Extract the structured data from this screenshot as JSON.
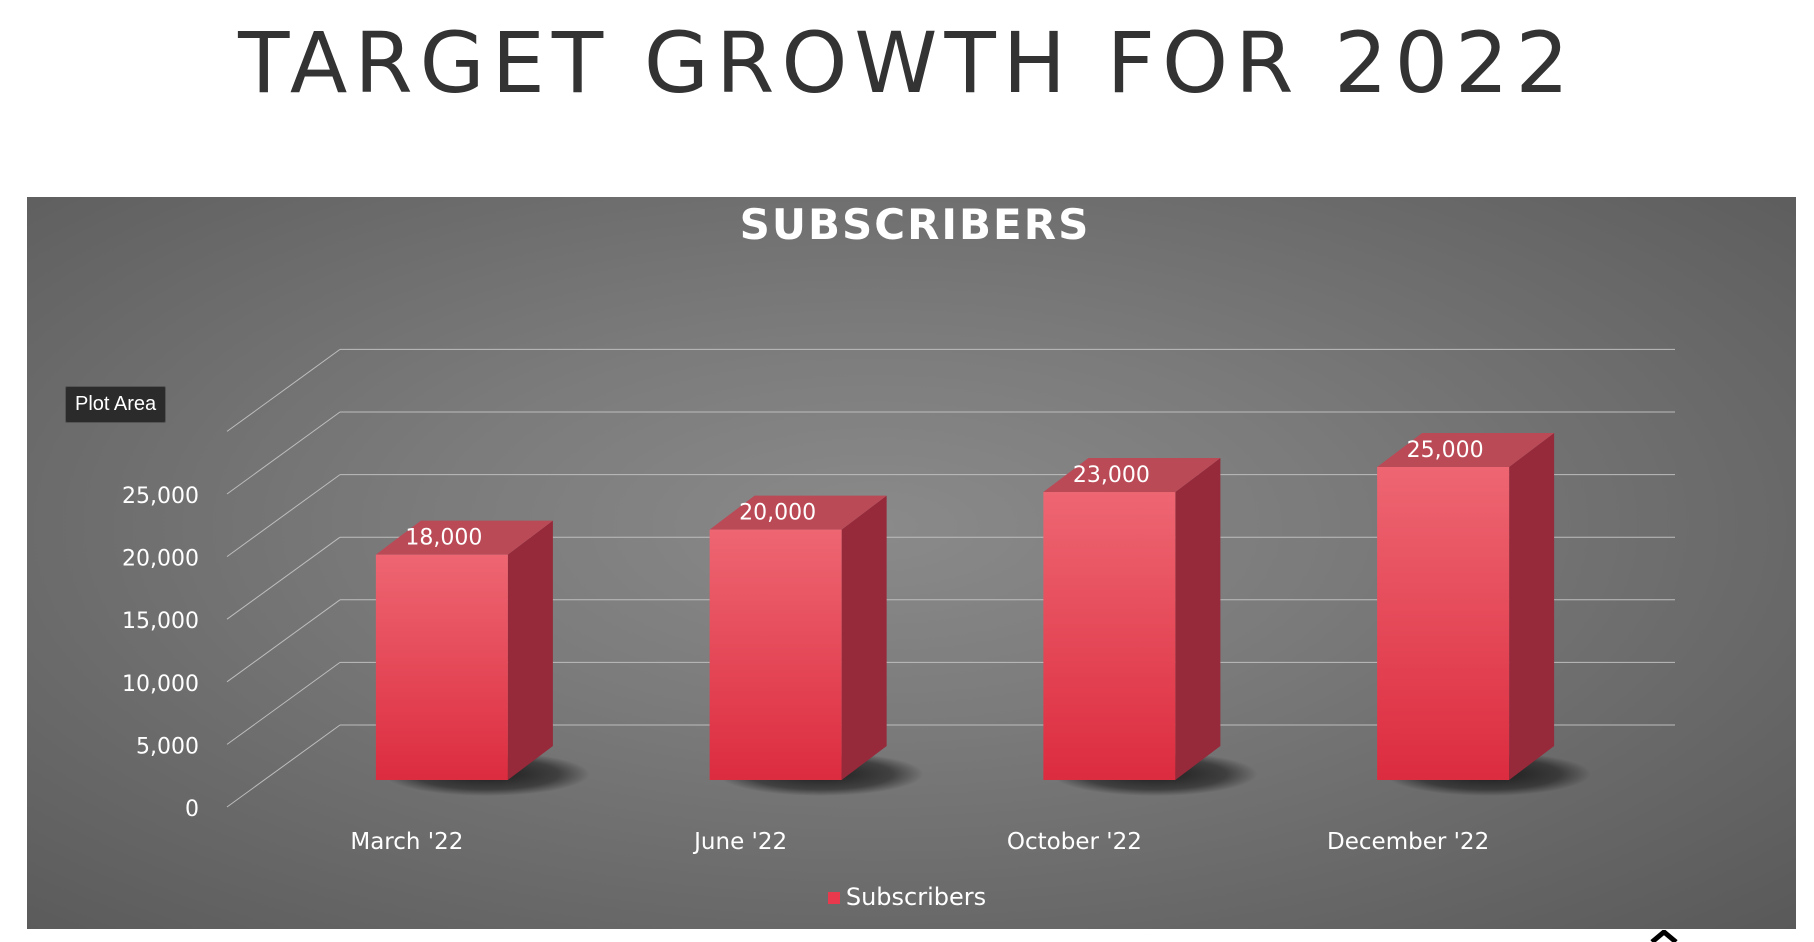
{
  "page": {
    "title": "TARGET GROWTH FOR 2022",
    "tooltip": "Plot Area"
  },
  "chart_data": {
    "type": "bar",
    "title": "SUBSCRIBERS",
    "categories": [
      "March '22",
      "June '22",
      "October '22",
      "December '22"
    ],
    "series": [
      {
        "name": "Subscribers",
        "values": [
          18000,
          20000,
          23000,
          25000
        ]
      }
    ],
    "data_labels": [
      "18,000",
      "20,000",
      "23,000",
      "25,000"
    ],
    "y_ticks": [
      "0",
      "5,000",
      "10,000",
      "15,000",
      "20,000",
      "25,000"
    ],
    "ylim": [
      0,
      30000
    ],
    "grid": true,
    "legend_position": "bottom",
    "style": "3d-column",
    "colors": {
      "bar_front_top": "#ee6672",
      "bar_front_bottom": "#dc2c3f",
      "bar_side": "#96293a",
      "bar_top": "#bb4a57",
      "background": "#7b7b7b",
      "grid": "#bdbdbd",
      "text": "#ffffff"
    }
  }
}
